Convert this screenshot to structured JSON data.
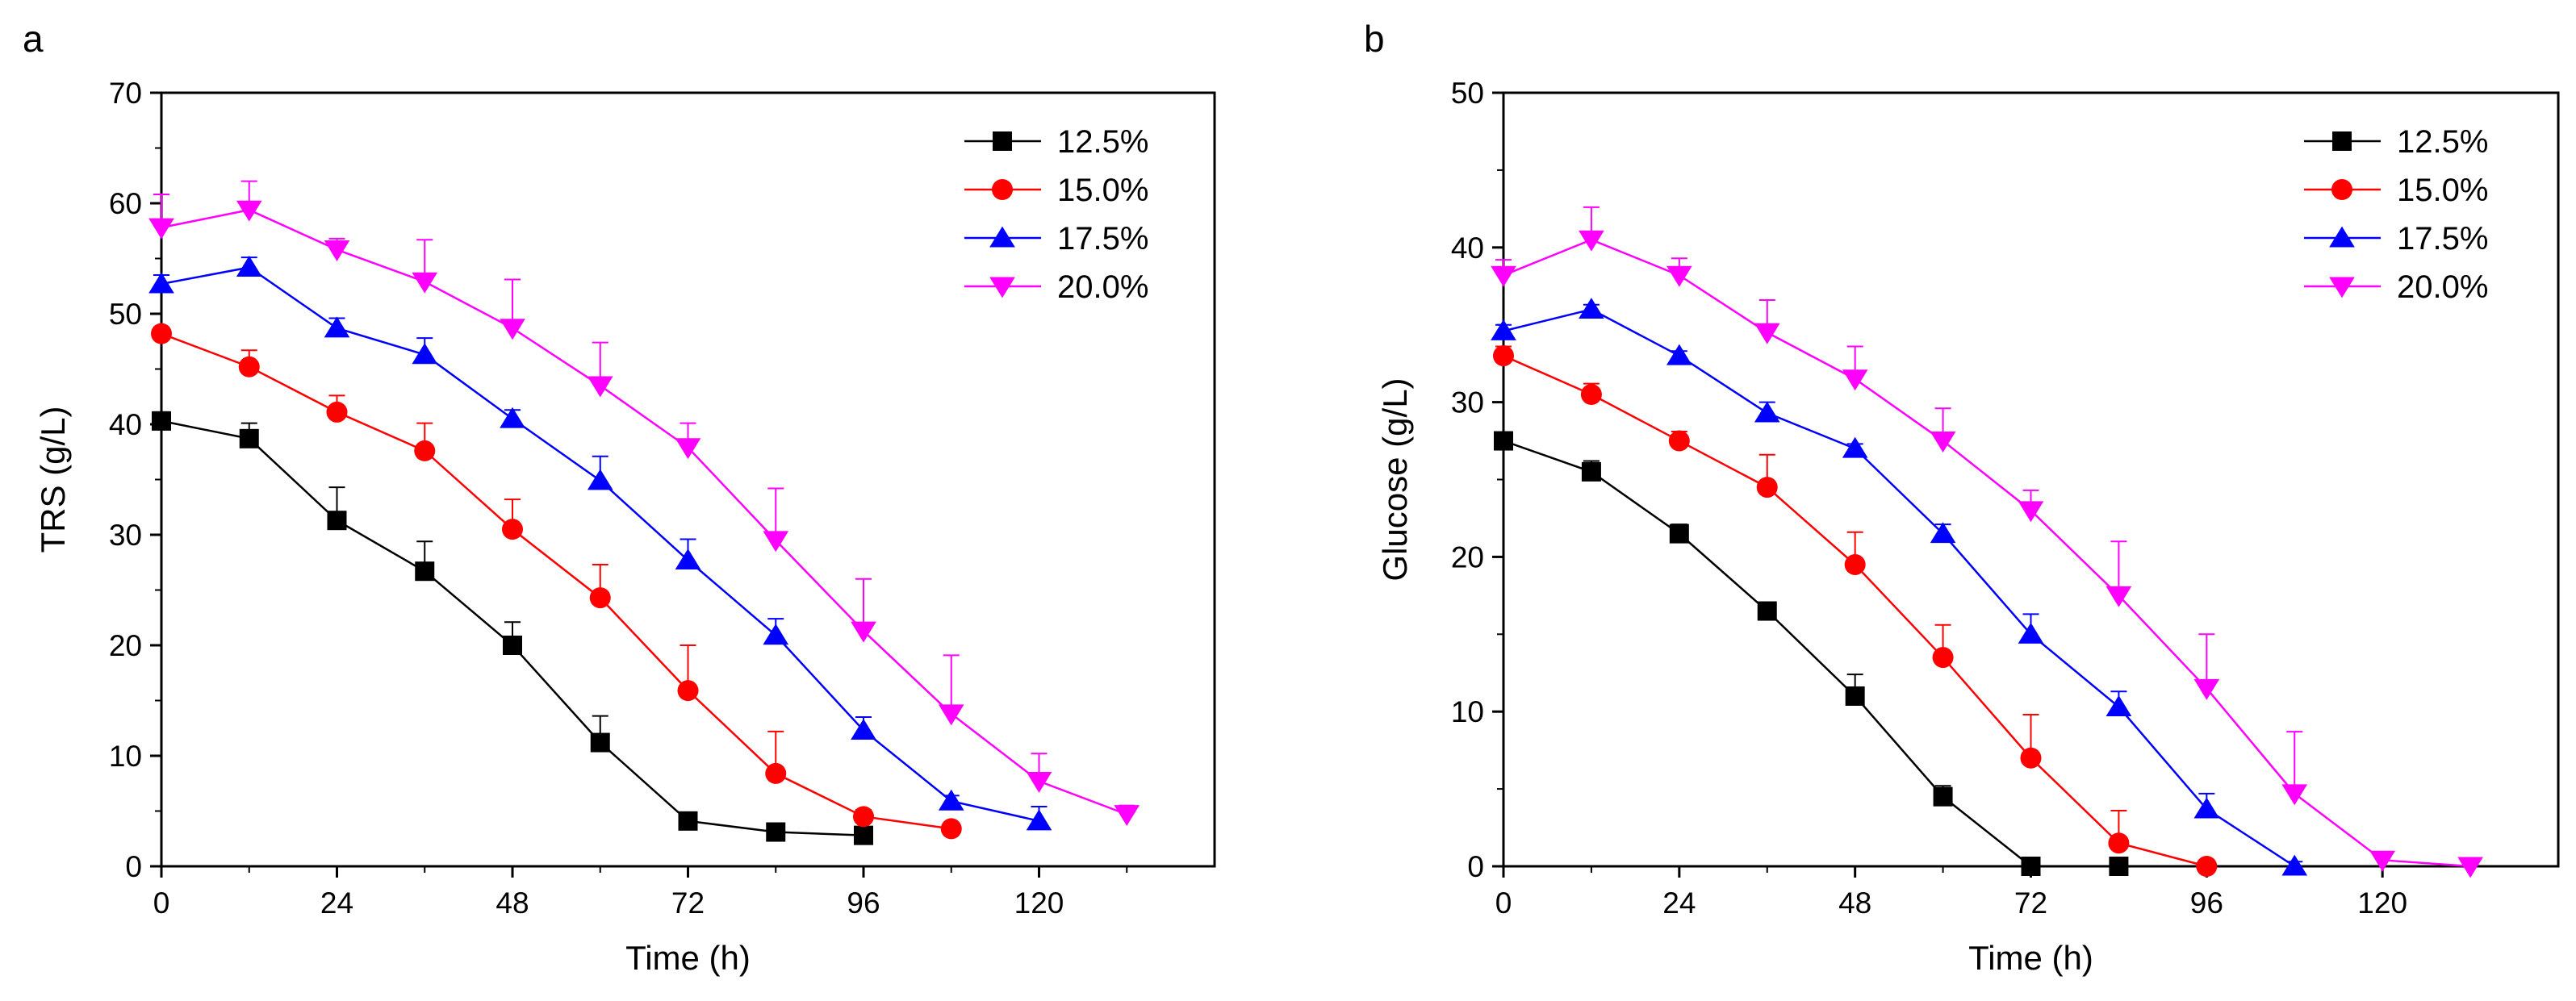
{
  "chart_data": [
    {
      "panel_label": "a",
      "type": "line",
      "title": "",
      "xlabel": "Time (h)",
      "ylabel": "TRS (g/L)",
      "xlim": [
        0,
        144
      ],
      "ylim": [
        0,
        70
      ],
      "xticks": [
        0,
        24,
        48,
        72,
        96,
        120
      ],
      "yticks": [
        0,
        10,
        20,
        30,
        40,
        50,
        60,
        70
      ],
      "legend_position": "top-right",
      "series": [
        {
          "name": "12.5%",
          "color": "#000000",
          "marker": "square",
          "x": [
            0,
            12,
            24,
            36,
            48,
            60,
            72,
            84,
            96
          ],
          "y": [
            40.3,
            38.7,
            31.3,
            26.7,
            20.0,
            11.2,
            4.1,
            3.1,
            2.8
          ],
          "err": [
            0.8,
            1.4,
            3.0,
            2.7,
            2.1,
            2.4,
            0.5,
            0.4,
            0.4
          ]
        },
        {
          "name": "15.0%",
          "color": "#ff0000",
          "marker": "circle",
          "x": [
            0,
            12,
            24,
            36,
            48,
            60,
            72,
            84,
            96,
            108
          ],
          "y": [
            48.2,
            45.2,
            41.1,
            37.6,
            30.5,
            24.3,
            15.9,
            8.4,
            4.5,
            3.4
          ],
          "err": [
            0.6,
            1.5,
            1.5,
            2.5,
            2.7,
            3.0,
            4.1,
            3.8,
            0.6,
            0.4
          ]
        },
        {
          "name": "17.5%",
          "color": "#0000ff",
          "marker": "triangle-up",
          "x": [
            0,
            12,
            24,
            36,
            48,
            60,
            72,
            84,
            96,
            108,
            120
          ],
          "y": [
            52.7,
            54.2,
            48.7,
            46.3,
            40.5,
            34.9,
            27.7,
            20.9,
            12.3,
            5.9,
            4.1
          ],
          "err": [
            0.8,
            0.9,
            0.9,
            1.5,
            0.8,
            2.2,
            1.9,
            1.5,
            1.2,
            0.5,
            1.3
          ]
        },
        {
          "name": "20.0%",
          "color": "#ff00ff",
          "marker": "triangle-down",
          "x": [
            0,
            12,
            24,
            36,
            48,
            60,
            72,
            84,
            96,
            108,
            120,
            132
          ],
          "y": [
            57.8,
            59.4,
            55.8,
            52.9,
            48.7,
            43.5,
            37.9,
            29.5,
            21.3,
            13.8,
            7.7,
            4.7
          ],
          "err": [
            3.0,
            2.6,
            1.0,
            3.8,
            4.4,
            3.9,
            2.2,
            4.7,
            4.7,
            5.3,
            2.5,
            0.8
          ]
        }
      ]
    },
    {
      "panel_label": "b",
      "type": "line",
      "title": "",
      "xlabel": "Time (h)",
      "ylabel": "Glucose (g/L)",
      "xlim": [
        0,
        144
      ],
      "ylim": [
        0,
        50
      ],
      "xticks": [
        0,
        24,
        48,
        72,
        96,
        120
      ],
      "yticks": [
        0,
        10,
        20,
        30,
        40,
        50
      ],
      "legend_position": "top-right",
      "series": [
        {
          "name": "12.5%",
          "color": "#000000",
          "marker": "square",
          "x": [
            0,
            12,
            24,
            36,
            48,
            60,
            72,
            84
          ],
          "y": [
            27.5,
            25.5,
            21.5,
            16.5,
            11.0,
            4.5,
            0.0,
            0.0
          ],
          "err": [
            0.5,
            0.7,
            0.6,
            0.5,
            1.4,
            0.7,
            0.2,
            0.1
          ]
        },
        {
          "name": "15.0%",
          "color": "#ff0000",
          "marker": "circle",
          "x": [
            0,
            12,
            24,
            36,
            48,
            60,
            72,
            84,
            96
          ],
          "y": [
            33.0,
            30.5,
            27.5,
            24.5,
            19.5,
            13.5,
            7.0,
            1.5,
            0.0
          ],
          "err": [
            0.6,
            0.7,
            0.6,
            2.1,
            2.1,
            2.1,
            2.8,
            2.1,
            0.2
          ]
        },
        {
          "name": "17.5%",
          "color": "#0000ff",
          "marker": "triangle-up",
          "x": [
            0,
            12,
            24,
            36,
            48,
            60,
            72,
            84,
            96,
            108
          ],
          "y": [
            34.6,
            36.0,
            33.0,
            29.3,
            27.0,
            21.5,
            15.0,
            10.3,
            3.7,
            0.0
          ],
          "err": [
            0.4,
            0.3,
            0.3,
            0.7,
            0.3,
            0.6,
            1.3,
            1.0,
            1.0,
            0.3
          ]
        },
        {
          "name": "20.0%",
          "color": "#ff00ff",
          "marker": "triangle-down",
          "x": [
            0,
            12,
            24,
            36,
            48,
            60,
            72,
            84,
            96,
            108,
            120,
            132
          ],
          "y": [
            38.2,
            40.5,
            38.2,
            34.5,
            31.5,
            27.5,
            23.0,
            17.5,
            11.5,
            4.7,
            0.4,
            0.0
          ],
          "err": [
            1.0,
            2.1,
            1.1,
            2.1,
            2.1,
            2.1,
            1.3,
            3.5,
            3.5,
            4.0,
            0.3,
            0.1
          ]
        }
      ]
    }
  ]
}
